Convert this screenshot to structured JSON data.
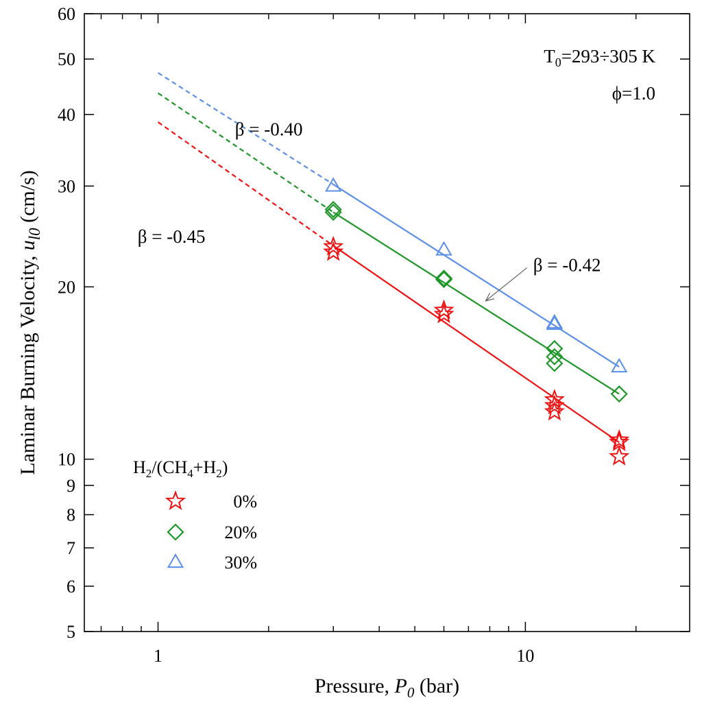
{
  "chart_data": {
    "type": "scatter",
    "title": "",
    "xlabel": {
      "main": "Pressure, ",
      "var": "P",
      "sub": "0",
      "unit": " (bar)"
    },
    "ylabel": {
      "main": "Laminar Burning Velocity, ",
      "var": "u",
      "sub": "l0",
      "unit": " (cm/s)"
    },
    "x_scale": "log",
    "y_scale": "log",
    "xlim": [
      0.63,
      28
    ],
    "ylim": [
      5,
      60
    ],
    "x_ticks": [
      {
        "value": 1,
        "label": "1"
      },
      {
        "value": 10,
        "label": "10"
      }
    ],
    "x_minor_ticks": [
      0.7,
      0.8,
      0.9,
      2,
      3,
      4,
      5,
      6,
      7,
      8,
      9,
      20
    ],
    "y_ticks": [
      {
        "value": 5,
        "label": "5"
      },
      {
        "value": 6,
        "label": "6"
      },
      {
        "value": 7,
        "label": "7"
      },
      {
        "value": 8,
        "label": "8"
      },
      {
        "value": 9,
        "label": "9"
      },
      {
        "value": 10,
        "label": "10"
      },
      {
        "value": 20,
        "label": "20"
      },
      {
        "value": 30,
        "label": "30"
      },
      {
        "value": 40,
        "label": "40"
      },
      {
        "value": 50,
        "label": "50"
      },
      {
        "value": 60,
        "label": "60"
      }
    ],
    "grid": false,
    "legend": {
      "placement": "bottom-left",
      "title": {
        "base": "H",
        "s1": "2",
        "mid": "/(CH",
        "s2": "4",
        "mid2": "+H",
        "s3": "2",
        "end": ")"
      }
    },
    "conditions": {
      "line1": {
        "base": "T",
        "sub": "0",
        "rest": "=293÷305 K"
      },
      "line2": "ϕ=1.0"
    },
    "series": [
      {
        "name": "0%",
        "marker": "star",
        "color": "#ee1111",
        "points": [
          [
            3,
            23.5
          ],
          [
            3,
            23.0
          ],
          [
            6,
            18.2
          ],
          [
            6,
            17.9
          ],
          [
            12,
            12.7
          ],
          [
            12,
            12.4
          ],
          [
            12,
            12.1
          ],
          [
            18,
            10.8
          ],
          [
            18,
            10.7
          ],
          [
            18,
            10.1
          ]
        ],
        "fit_solid": [
          [
            3,
            23.6
          ],
          [
            18,
            10.7
          ]
        ],
        "fit_dashed": [
          [
            1,
            38.8
          ],
          [
            3,
            23.6
          ]
        ]
      },
      {
        "name": "20%",
        "marker": "diamond",
        "color": "#1e9628",
        "points": [
          [
            3,
            27.3
          ],
          [
            3,
            27.0
          ],
          [
            6,
            20.7
          ],
          [
            6,
            20.6
          ],
          [
            12,
            15.6
          ],
          [
            12,
            15.1
          ],
          [
            12,
            14.7
          ],
          [
            18,
            13.0
          ]
        ],
        "fit_solid": [
          [
            3,
            27.0
          ],
          [
            18,
            13.0
          ]
        ],
        "fit_dashed": [
          [
            1,
            43.6
          ],
          [
            3,
            27.0
          ]
        ]
      },
      {
        "name": "30%",
        "marker": "triangle",
        "color": "#5b8fe8",
        "points": [
          [
            3,
            30.0
          ],
          [
            6,
            23.2
          ],
          [
            12,
            17.3
          ],
          [
            12,
            17.2
          ],
          [
            18,
            14.5
          ]
        ],
        "fit_solid": [
          [
            3,
            30.2
          ],
          [
            18,
            14.5
          ]
        ],
        "fit_dashed": [
          [
            1,
            47.3
          ],
          [
            3,
            30.2
          ]
        ]
      }
    ],
    "annotations": [
      {
        "text": "β = -0.40",
        "x": 1.62,
        "y": 36.8,
        "anchor": "start"
      },
      {
        "text": "β = -0.45",
        "x": 0.88,
        "y": 23.9,
        "anchor": "start"
      },
      {
        "text": "β = -0.42",
        "x": 10.5,
        "y": 21.3,
        "anchor": "start"
      }
    ],
    "arrow": {
      "from": [
        10.1,
        21.6
      ],
      "to": [
        7.8,
        18.9
      ]
    }
  }
}
